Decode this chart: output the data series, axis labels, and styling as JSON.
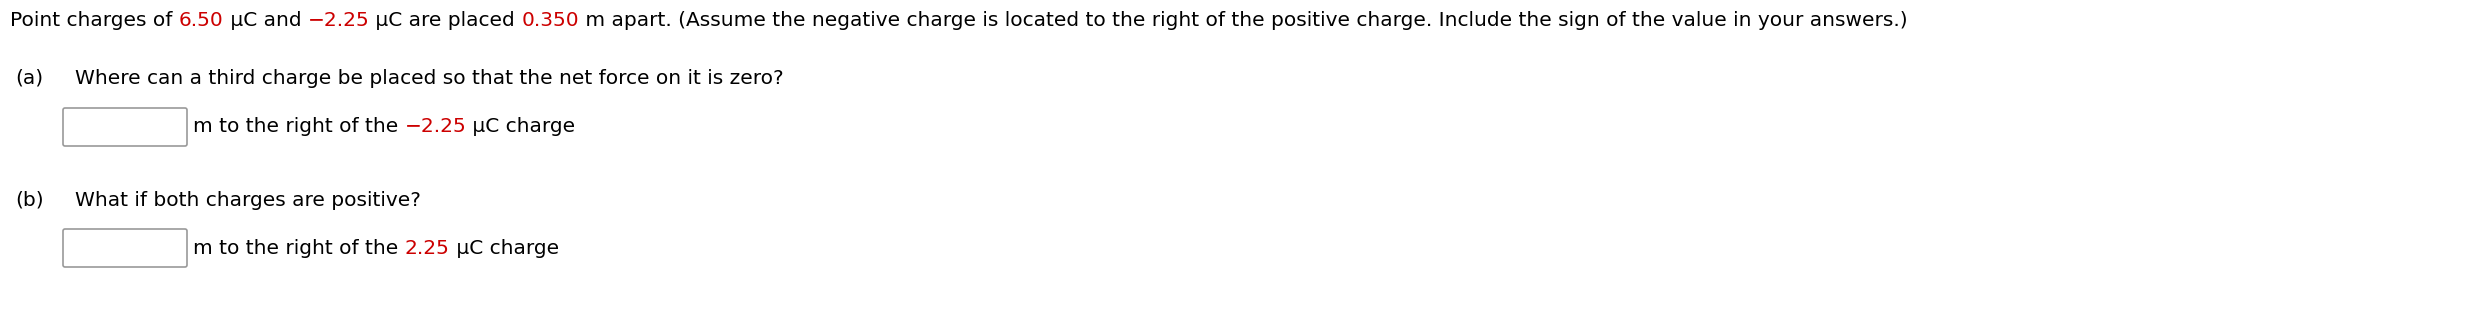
{
  "title_parts": [
    {
      "text": "Point charges of ",
      "color": "#000000"
    },
    {
      "text": "6.50",
      "color": "#cc0000"
    },
    {
      "text": " μC and ",
      "color": "#000000"
    },
    {
      "text": "−2.25",
      "color": "#cc0000"
    },
    {
      "text": " μC are placed ",
      "color": "#000000"
    },
    {
      "text": "0.350",
      "color": "#cc0000"
    },
    {
      "text": " m apart. (Assume the negative charge is located to the right of the positive charge. Include the sign of the value in your answers.)",
      "color": "#000000"
    }
  ],
  "part_a_label": "(a)",
  "part_a_question": "Where can a third charge be placed so that the net force on it is zero?",
  "part_a_answer_parts": [
    {
      "text": "m to the right of the ",
      "color": "#000000"
    },
    {
      "text": "−2.25",
      "color": "#cc0000"
    },
    {
      "text": " μC charge",
      "color": "#000000"
    }
  ],
  "part_b_label": "(b)",
  "part_b_question": "What if both charges are positive?",
  "part_b_answer_parts": [
    {
      "text": "m to the right of the ",
      "color": "#000000"
    },
    {
      "text": "2.25",
      "color": "#cc0000"
    },
    {
      "text": " μC charge",
      "color": "#000000"
    }
  ],
  "bg_color": "#ffffff",
  "font_size": 14.5,
  "box_color": "#999999",
  "box_edge_width": 1.2
}
